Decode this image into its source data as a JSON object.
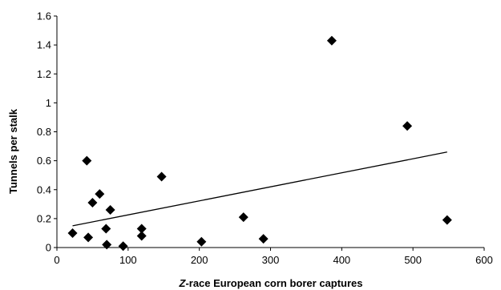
{
  "chart_data": {
    "type": "scatter",
    "title": "",
    "xlabel_prefix": "Z",
    "xlabel_rest": "-race European corn borer captures",
    "ylabel": "Tunnels per stalk",
    "xlim": [
      0,
      600
    ],
    "ylim": [
      0,
      1.6
    ],
    "x_ticks": [
      "0",
      "100",
      "200",
      "300",
      "400",
      "500",
      "600"
    ],
    "y_ticks": [
      "0",
      "0.2",
      "0.4",
      "0.6",
      "0.8",
      "1",
      "1.2",
      "1.4",
      "1.6"
    ],
    "grid": false,
    "legend": "none",
    "marker": "diamond",
    "marker_color": "#000000",
    "points": [
      {
        "x": 22,
        "y": 0.1
      },
      {
        "x": 42,
        "y": 0.6
      },
      {
        "x": 44,
        "y": 0.07
      },
      {
        "x": 50,
        "y": 0.31
      },
      {
        "x": 60,
        "y": 0.37
      },
      {
        "x": 69,
        "y": 0.13
      },
      {
        "x": 70,
        "y": 0.02
      },
      {
        "x": 75,
        "y": 0.26
      },
      {
        "x": 93,
        "y": 0.01
      },
      {
        "x": 119,
        "y": 0.13
      },
      {
        "x": 119,
        "y": 0.08
      },
      {
        "x": 147,
        "y": 0.49
      },
      {
        "x": 203,
        "y": 0.04
      },
      {
        "x": 262,
        "y": 0.21
      },
      {
        "x": 290,
        "y": 0.06
      },
      {
        "x": 386,
        "y": 1.43
      },
      {
        "x": 492,
        "y": 0.84
      },
      {
        "x": 548,
        "y": 0.19
      }
    ],
    "trendline": {
      "type": "linear",
      "x_start": 22,
      "y_start": 0.15,
      "x_end": 548,
      "y_end": 0.66
    }
  }
}
